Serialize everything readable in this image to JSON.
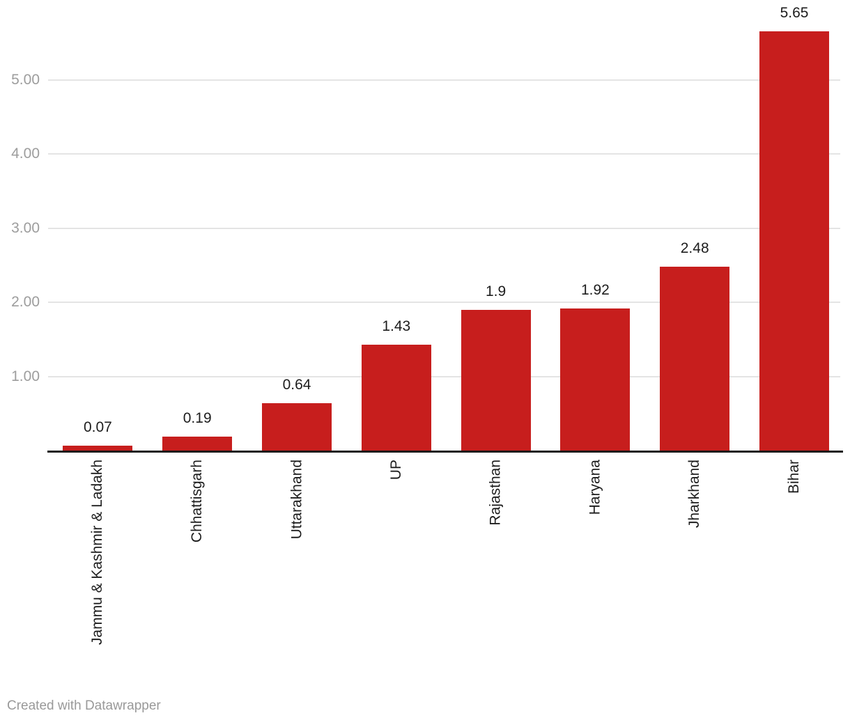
{
  "chart_data": {
    "type": "bar",
    "title": "",
    "xlabel": "",
    "ylabel": "",
    "categories": [
      "Jammu & Kashmir & Ladakh",
      "Chhattisgarh",
      "Uttarakhand",
      "UP",
      "Rajasthan",
      "Haryana",
      "Jharkhand",
      "Bihar"
    ],
    "values": [
      0.07,
      0.19,
      0.64,
      1.43,
      1.9,
      1.92,
      2.48,
      5.65
    ],
    "value_labels": [
      "0.07",
      "0.19",
      "0.64",
      "1.43",
      "1.9",
      "1.92",
      "2.48",
      "5.65"
    ],
    "ylim": [
      0,
      5.8
    ],
    "yticks": [
      {
        "value": 1,
        "label": "1.00"
      },
      {
        "value": 2,
        "label": "2.00"
      },
      {
        "value": 3,
        "label": "3.00"
      },
      {
        "value": 4,
        "label": "4.00"
      },
      {
        "value": 5,
        "label": "5.00"
      }
    ],
    "grid": "horizontal",
    "legend_position": "none",
    "bar_color": "#c71e1d"
  },
  "colors": {
    "bar": "#c71e1d",
    "axis_line": "#1a1a1a",
    "gridline": "#e4e4e4",
    "y_tick_label": "#9d9d9d",
    "data_label": "#1d1d1d",
    "category_label": "#1d1d1d",
    "attribution": "#999999",
    "background": "#ffffff"
  },
  "footer": {
    "credit": "Created with Datawrapper"
  }
}
